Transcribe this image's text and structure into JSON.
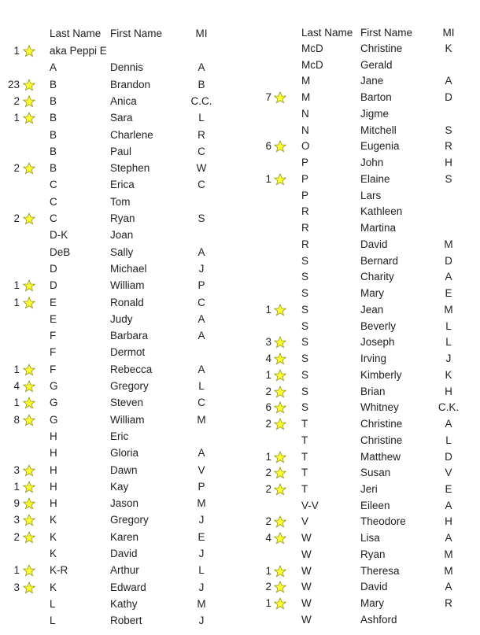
{
  "star_color": "#ffff33",
  "star_icon": "star-icon",
  "headers": {
    "last": "Last Name",
    "first": "First Name",
    "mi": "MI"
  },
  "left_rows": [
    {
      "count": "1",
      "last": "aka Peppi E",
      "first": "",
      "mi": ""
    },
    {
      "count": "",
      "last": "A",
      "first": "Dennis",
      "mi": "A"
    },
    {
      "count": "23",
      "last": "B",
      "first": "Brandon",
      "mi": "B"
    },
    {
      "count": "2",
      "last": "B",
      "first": "Anica",
      "mi": "C.C."
    },
    {
      "count": "1",
      "last": "B",
      "first": "Sara",
      "mi": "L"
    },
    {
      "count": "",
      "last": "B",
      "first": "Charlene",
      "mi": "R"
    },
    {
      "count": "",
      "last": "B",
      "first": "Paul",
      "mi": "C"
    },
    {
      "count": "2",
      "last": "B",
      "first": "Stephen",
      "mi": "W"
    },
    {
      "count": "",
      "last": "C",
      "first": "Erica",
      "mi": "C"
    },
    {
      "count": "",
      "last": "C",
      "first": "Tom",
      "mi": ""
    },
    {
      "count": "2",
      "last": "C",
      "first": "Ryan",
      "mi": "S"
    },
    {
      "count": "",
      "last": "D-K",
      "first": "Joan",
      "mi": ""
    },
    {
      "count": "",
      "last": "DeB",
      "first": "Sally",
      "mi": "A"
    },
    {
      "count": "",
      "last": "D",
      "first": "Michael",
      "mi": "J"
    },
    {
      "count": "1",
      "last": "D",
      "first": "William",
      "mi": "P"
    },
    {
      "count": "1",
      "last": "E",
      "first": "Ronald",
      "mi": "C"
    },
    {
      "count": "",
      "last": "E",
      "first": "Judy",
      "mi": "A"
    },
    {
      "count": "",
      "last": "F",
      "first": "Barbara",
      "mi": "A"
    },
    {
      "count": "",
      "last": "F",
      "first": "Dermot",
      "mi": ""
    },
    {
      "count": "1",
      "last": "F",
      "first": "Rebecca",
      "mi": "A"
    },
    {
      "count": "4",
      "last": "G",
      "first": "Gregory",
      "mi": "L"
    },
    {
      "count": "1",
      "last": "G",
      "first": "Steven",
      "mi": "C"
    },
    {
      "count": "8",
      "last": "G",
      "first": "William",
      "mi": "M"
    },
    {
      "count": "",
      "last": "H",
      "first": "Eric",
      "mi": ""
    },
    {
      "count": "",
      "last": "H",
      "first": "Gloria",
      "mi": "A"
    },
    {
      "count": "3",
      "last": "H",
      "first": "Dawn",
      "mi": "V"
    },
    {
      "count": "1",
      "last": "H",
      "first": "Kay",
      "mi": "P"
    },
    {
      "count": "9",
      "last": "H",
      "first": "Jason",
      "mi": "M"
    },
    {
      "count": "3",
      "last": "K",
      "first": "Gregory",
      "mi": "J"
    },
    {
      "count": "2",
      "last": "K",
      "first": "Karen",
      "mi": "E"
    },
    {
      "count": "",
      "last": "K",
      "first": "David",
      "mi": "J"
    },
    {
      "count": "1",
      "last": "K-R",
      "first": "Arthur",
      "mi": "L"
    },
    {
      "count": "3",
      "last": "K",
      "first": "Edward",
      "mi": "J"
    },
    {
      "count": "",
      "last": "L",
      "first": "Kathy",
      "mi": "M"
    },
    {
      "count": "",
      "last": "L",
      "first": "Robert",
      "mi": "J"
    }
  ],
  "right_rows": [
    {
      "count": "",
      "last": "McD",
      "first": "Christine",
      "mi": "K"
    },
    {
      "count": "",
      "last": "McD",
      "first": "Gerald",
      "mi": ""
    },
    {
      "count": "",
      "last": "M",
      "first": "Jane",
      "mi": "A"
    },
    {
      "count": "7",
      "last": "M",
      "first": "Barton",
      "mi": "D"
    },
    {
      "count": "",
      "last": "N",
      "first": "Jigme",
      "mi": ""
    },
    {
      "count": "",
      "last": "N",
      "first": "Mitchell",
      "mi": "S"
    },
    {
      "count": "6",
      "last": "O",
      "first": "Eugenia",
      "mi": "R"
    },
    {
      "count": "",
      "last": "P",
      "first": "John",
      "mi": "H"
    },
    {
      "count": "1",
      "last": "P",
      "first": "Elaine",
      "mi": "S"
    },
    {
      "count": "",
      "last": "P",
      "first": "Lars",
      "mi": ""
    },
    {
      "count": "",
      "last": "R",
      "first": "Kathleen",
      "mi": ""
    },
    {
      "count": "",
      "last": "R",
      "first": "Martina",
      "mi": ""
    },
    {
      "count": "",
      "last": "R",
      "first": "David",
      "mi": "M"
    },
    {
      "count": "",
      "last": "S",
      "first": "Bernard",
      "mi": "D"
    },
    {
      "count": "",
      "last": "S",
      "first": "Charity",
      "mi": "A"
    },
    {
      "count": "",
      "last": "S",
      "first": "Mary",
      "mi": "E"
    },
    {
      "count": "1",
      "last": "S",
      "first": "Jean",
      "mi": "M"
    },
    {
      "count": "",
      "last": "S",
      "first": "Beverly",
      "mi": "L"
    },
    {
      "count": "3",
      "last": "S",
      "first": "Joseph",
      "mi": "L"
    },
    {
      "count": "4",
      "last": "S",
      "first": "Irving",
      "mi": "J"
    },
    {
      "count": "1",
      "last": "S",
      "first": "Kimberly",
      "mi": "K"
    },
    {
      "count": "2",
      "last": "S",
      "first": "Brian",
      "mi": "H"
    },
    {
      "count": "6",
      "last": "S",
      "first": "Whitney",
      "mi": "C.K."
    },
    {
      "count": "2",
      "last": "T",
      "first": "Christine",
      "mi": "A"
    },
    {
      "count": "",
      "last": "T",
      "first": "Christine",
      "mi": "L"
    },
    {
      "count": "1",
      "last": "T",
      "first": "Matthew",
      "mi": "D"
    },
    {
      "count": "2",
      "last": "T",
      "first": "Susan",
      "mi": "V"
    },
    {
      "count": "2",
      "last": "T",
      "first": "Jeri",
      "mi": "E"
    },
    {
      "count": "",
      "last": "V-V",
      "first": "Eileen",
      "mi": "A"
    },
    {
      "count": "2",
      "last": "V",
      "first": "Theodore",
      "mi": "H"
    },
    {
      "count": "4",
      "last": "W",
      "first": "Lisa",
      "mi": "A"
    },
    {
      "count": "",
      "last": "W",
      "first": "Ryan",
      "mi": "M"
    },
    {
      "count": "1",
      "last": "W",
      "first": "Theresa",
      "mi": "M"
    },
    {
      "count": "2",
      "last": "W",
      "first": "David",
      "mi": "A"
    },
    {
      "count": "1",
      "last": "W",
      "first": "Mary",
      "mi": "R"
    },
    {
      "count": "",
      "last": "W",
      "first": "Ashford",
      "mi": ""
    }
  ]
}
